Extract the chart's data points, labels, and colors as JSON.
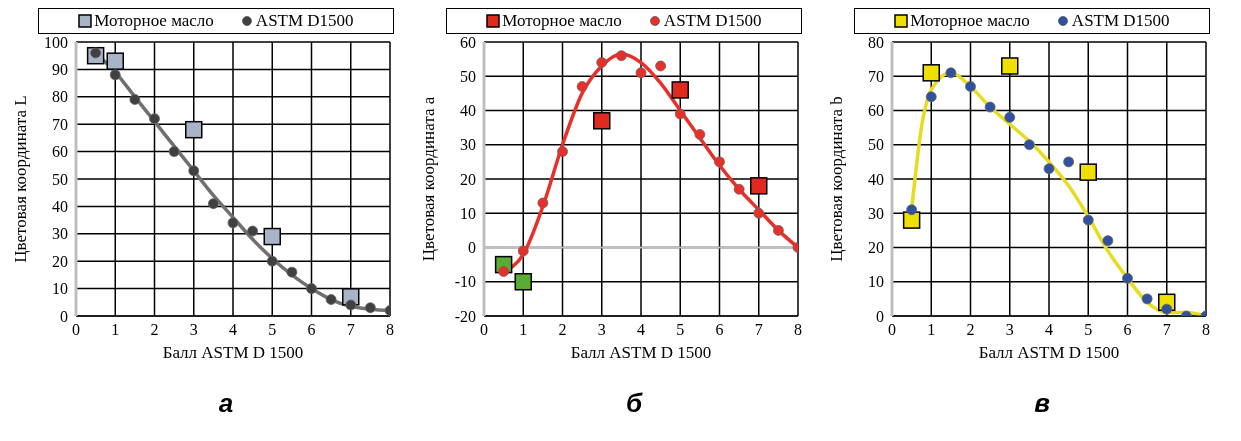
{
  "chart_data": [
    {
      "type": "scatter",
      "title": "а",
      "xlabel": "Балл ASTM D 1500",
      "ylabel": "Цветовая координата L",
      "xlim": [
        0,
        8
      ],
      "xticks": [
        0,
        1,
        2,
        3,
        4,
        5,
        6,
        7,
        8
      ],
      "ylim": [
        0,
        100
      ],
      "yticks": [
        0,
        10,
        20,
        30,
        40,
        50,
        60,
        70,
        80,
        90,
        100
      ],
      "grid": true,
      "legend": "top",
      "series": [
        {
          "name": "Моторное масло",
          "marker": "square",
          "color": "#a8b4c8",
          "x": [
            0.5,
            1,
            3,
            5,
            7
          ],
          "values": [
            95,
            93,
            68,
            29,
            7
          ]
        },
        {
          "name": "ASTM D1500",
          "marker": "circle",
          "color": "#404040",
          "x": [
            0.5,
            1,
            1.5,
            2,
            2.5,
            3,
            3.5,
            4,
            4.5,
            5,
            5.5,
            6,
            6.5,
            7,
            7.5,
            8
          ],
          "values": [
            96,
            88,
            79,
            72,
            60,
            53,
            41,
            34,
            31,
            20,
            16,
            10,
            6,
            4,
            3,
            2
          ]
        },
        {
          "type": "line",
          "marker": "none",
          "color": "#707070",
          "x": [
            0.5,
            1,
            1.5,
            2,
            2.5,
            3,
            3.5,
            4,
            4.5,
            5,
            5.5,
            6,
            6.5,
            7,
            7.5,
            8
          ],
          "values": [
            96,
            89,
            80,
            71,
            62,
            53,
            44,
            36,
            28,
            21,
            15,
            10,
            6,
            3.5,
            2.5,
            2
          ]
        }
      ]
    },
    {
      "type": "scatter",
      "title": "б",
      "xlabel": "Балл ASTM D 1500",
      "ylabel": "Цветовая координата a",
      "xlim": [
        0,
        8
      ],
      "xticks": [
        0,
        1,
        2,
        3,
        4,
        5,
        6,
        7,
        8
      ],
      "ylim": [
        -20,
        60
      ],
      "yticks": [
        -20,
        -10,
        0,
        10,
        20,
        30,
        40,
        50,
        60
      ],
      "grid": true,
      "legend": "top",
      "ref_lines": [
        {
          "axis": "y",
          "value": 0,
          "color": "#bfbfbf"
        }
      ],
      "series": [
        {
          "name": "Моторное масло",
          "marker": "square",
          "color": "#e02a20",
          "colors": [
            "#5aac32",
            "#5aac32",
            "#e02a20",
            "#e02a20",
            "#e02a20"
          ],
          "x": [
            0.5,
            1,
            3,
            5,
            7
          ],
          "values": [
            -5,
            -10,
            37,
            46,
            18
          ]
        },
        {
          "name": "ASTM D1500",
          "marker": "circle",
          "color": "#e8302a",
          "x": [
            0.5,
            1,
            1.5,
            2,
            2.5,
            3,
            3.5,
            4,
            4.5,
            5,
            5.5,
            6,
            6.5,
            7,
            7.5,
            8
          ],
          "values": [
            -7,
            -1,
            13,
            28,
            47,
            54,
            56,
            51,
            53,
            39,
            33,
            25,
            17,
            10,
            5,
            0
          ]
        },
        {
          "type": "line",
          "marker": "none",
          "color": "#e8302a",
          "x": [
            0.5,
            1,
            1.5,
            2,
            2.5,
            3,
            3.5,
            4,
            4.5,
            5,
            5.5,
            6,
            6.5,
            7,
            7.5,
            8
          ],
          "values": [
            -7,
            -2,
            12,
            30,
            45,
            53,
            56.5,
            54,
            48,
            40,
            32,
            24,
            17,
            11,
            5,
            0
          ]
        }
      ]
    },
    {
      "type": "scatter",
      "title": "в",
      "xlabel": "Балл ASTM D 1500",
      "ylabel": "Цветовая координата b",
      "xlim": [
        0,
        8
      ],
      "xticks": [
        0,
        1,
        2,
        3,
        4,
        5,
        6,
        7,
        8
      ],
      "ylim": [
        0,
        80
      ],
      "yticks": [
        0,
        10,
        20,
        30,
        40,
        50,
        60,
        70,
        80
      ],
      "grid": true,
      "legend": "top",
      "series": [
        {
          "name": "Моторное масло",
          "marker": "square",
          "color": "#f0e000",
          "x": [
            0.5,
            1,
            3,
            5,
            7
          ],
          "values": [
            28,
            71,
            73,
            42,
            4
          ]
        },
        {
          "name": "ASTM D1500",
          "marker": "circle",
          "color": "#3050a0",
          "x": [
            0.5,
            1,
            1.5,
            2,
            2.5,
            3,
            3.5,
            4,
            4.5,
            5,
            5.5,
            6,
            6.5,
            7,
            7.5,
            8
          ],
          "values": [
            31,
            64,
            71,
            67,
            61,
            58,
            50,
            43,
            45,
            28,
            22,
            11,
            5,
            2,
            0,
            0
          ]
        },
        {
          "type": "line",
          "marker": "none",
          "color": "#e8dc20",
          "x": [
            0.5,
            0.75,
            1,
            1.5,
            2,
            2.5,
            3,
            3.5,
            4,
            4.5,
            5,
            5.5,
            6,
            6.5,
            7,
            7.5,
            8
          ],
          "values": [
            31,
            55,
            66,
            71,
            67,
            61,
            56,
            51,
            45,
            38,
            29,
            19,
            11,
            4,
            1,
            1,
            0
          ]
        }
      ]
    }
  ]
}
